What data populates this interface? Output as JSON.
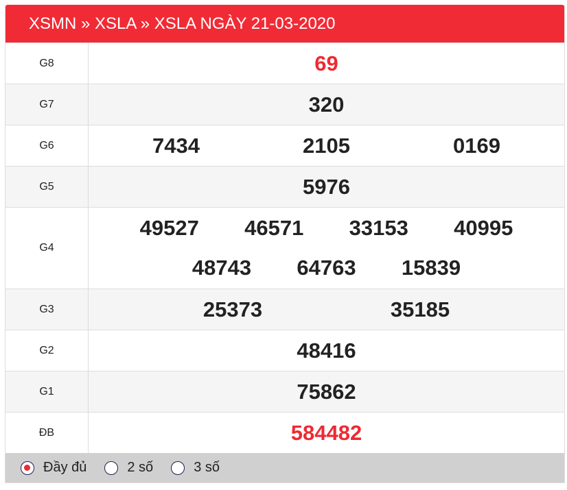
{
  "header": {
    "title": "XSMN » XSLA » XSLA NGÀY 21-03-2020"
  },
  "colors": {
    "accent": "#f12b35",
    "special_number": "#ee2a33"
  },
  "prizes": [
    {
      "label": "G8",
      "numbers": [
        "69"
      ]
    },
    {
      "label": "G7",
      "numbers": [
        "320"
      ]
    },
    {
      "label": "G6",
      "numbers": [
        "7434",
        "2105",
        "0169"
      ]
    },
    {
      "label": "G5",
      "numbers": [
        "5976"
      ]
    },
    {
      "label": "G4",
      "numbers": [
        "49527",
        "46571",
        "33153",
        "40995",
        "48743",
        "64763",
        "15839"
      ]
    },
    {
      "label": "G3",
      "numbers": [
        "25373",
        "35185"
      ]
    },
    {
      "label": "G2",
      "numbers": [
        "48416"
      ]
    },
    {
      "label": "G1",
      "numbers": [
        "75862"
      ]
    },
    {
      "label": "ĐB",
      "numbers": [
        "584482"
      ]
    }
  ],
  "footer": {
    "options": [
      {
        "label": "Đầy đủ",
        "selected": true
      },
      {
        "label": "2 số",
        "selected": false
      },
      {
        "label": "3 số",
        "selected": false
      }
    ]
  }
}
